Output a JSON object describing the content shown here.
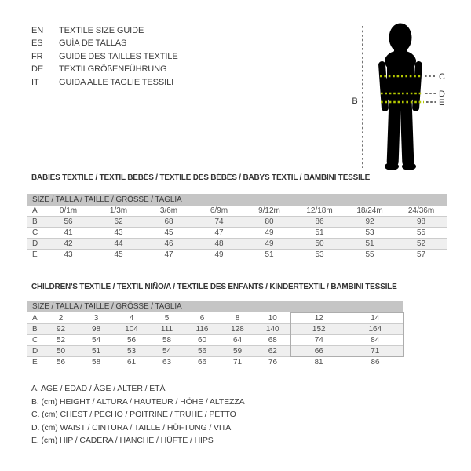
{
  "languages": {
    "items": [
      {
        "code": "EN",
        "label": "TEXTILE SIZE GUIDE"
      },
      {
        "code": "ES",
        "label": "GUÍA DE TALLAS"
      },
      {
        "code": "FR",
        "label": "GUIDE DES TAILLES TEXTILE"
      },
      {
        "code": "DE",
        "label": "TEXTILGRÖßENFÜHRUNG"
      },
      {
        "code": "IT",
        "label": "GUIDA ALLE TAGLIE TESSILI"
      }
    ]
  },
  "figure": {
    "height_label": "B",
    "chest_label": "C",
    "waist_label": "D",
    "hip_label": "E",
    "dot_color": "#b5c900",
    "line_color": "#3a3a3a",
    "silhouette_color": "#000000"
  },
  "babies_table": {
    "title": "BABIES TEXTILE / TEXTIL BEBÉS / TEXTILE DES BÉBÉS / BABYS TEXTIL / BAMBINI TESSILE",
    "header": "SIZE / TALLA / TAILLE / GRÖSSE / TAGLIA",
    "rows": [
      {
        "label": "A",
        "values": [
          "0/1m",
          "1/3m",
          "3/6m",
          "6/9m",
          "9/12m",
          "12/18m",
          "18/24m",
          "24/36m"
        ]
      },
      {
        "label": "B",
        "values": [
          "56",
          "62",
          "68",
          "74",
          "80",
          "86",
          "92",
          "98"
        ]
      },
      {
        "label": "C",
        "values": [
          "41",
          "43",
          "45",
          "47",
          "49",
          "51",
          "53",
          "55"
        ]
      },
      {
        "label": "D",
        "values": [
          "42",
          "44",
          "46",
          "48",
          "49",
          "50",
          "51",
          "52"
        ]
      },
      {
        "label": "E",
        "values": [
          "43",
          "45",
          "47",
          "49",
          "51",
          "53",
          "55",
          "57"
        ]
      }
    ]
  },
  "children_table": {
    "title": "CHILDREN'S TEXTILE / TEXTIL NIÑO/A / TEXTILE DES ENFANTS / KINDERTEXTIL / BAMBINI TESSILE",
    "header": "SIZE / TALLA / TAILLE / GRÖSSE / TAGLIA",
    "rows": [
      {
        "label": "A",
        "values": [
          "2",
          "3",
          "4",
          "5",
          "6",
          "8",
          "10",
          "12",
          "14"
        ]
      },
      {
        "label": "B",
        "values": [
          "92",
          "98",
          "104",
          "111",
          "116",
          "128",
          "140",
          "152",
          "164"
        ]
      },
      {
        "label": "C",
        "values": [
          "52",
          "54",
          "56",
          "58",
          "60",
          "64",
          "68",
          "74",
          "84"
        ]
      },
      {
        "label": "D",
        "values": [
          "50",
          "51",
          "53",
          "54",
          "56",
          "59",
          "62",
          "66",
          "71"
        ]
      },
      {
        "label": "E",
        "values": [
          "56",
          "58",
          "61",
          "63",
          "66",
          "71",
          "76",
          "81",
          "86"
        ]
      }
    ]
  },
  "legend": {
    "items": [
      "A. AGE / EDAD / ÂGE / ALTER / ETÀ",
      "B. (cm) HEIGHT / ALTURA / HAUTEUR / HÖHE / ALTEZZA",
      "C. (cm) CHEST / PECHO / POITRINE / TRUHE / PETTO",
      "D. (cm) WAIST / CINTURA / TAILLE / HÜFTUNG / VITA",
      "E. (cm) HIP / CADERA / HANCHE / HÜFTE / HIPS"
    ]
  },
  "colors": {
    "header_bar_bg": "#c5c5c5",
    "row_shade_bg": "#efefef",
    "measure_dot": "#b5c900",
    "text": "#3b3b3b"
  }
}
